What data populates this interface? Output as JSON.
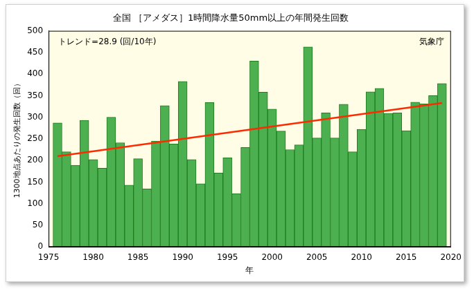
{
  "chart_data": {
    "type": "bar",
    "title": "全国 ［アメダス］1時間降水量50mm以上の年間発生回数",
    "x_label": "年",
    "y_label": "1300地点あたりの発生回数（回）",
    "annotations": [
      "トレンド=28.9 (回/10年)",
      "気象庁"
    ],
    "x": [
      1976,
      1977,
      1978,
      1979,
      1980,
      1981,
      1982,
      1983,
      1984,
      1985,
      1986,
      1987,
      1988,
      1989,
      1990,
      1991,
      1992,
      1993,
      1994,
      1995,
      1996,
      1997,
      1998,
      1999,
      2000,
      2001,
      2002,
      2003,
      2004,
      2005,
      2006,
      2007,
      2008,
      2009,
      2010,
      2011,
      2012,
      2013,
      2014,
      2015,
      2016,
      2017,
      2018,
      2019
    ],
    "series": [
      {
        "type": "bar",
        "color": "#4caf50",
        "values": [
          287,
          220,
          189,
          293,
          202,
          182,
          300,
          241,
          143,
          204,
          134,
          245,
          327,
          238,
          383,
          202,
          146,
          334,
          171,
          206,
          123,
          230,
          430,
          358,
          319,
          268,
          225,
          236,
          463,
          252,
          310,
          252,
          330,
          220,
          272,
          359,
          367,
          309,
          310,
          269,
          335,
          331,
          350,
          378
        ]
      },
      {
        "type": "line",
        "color": "#ff2a00",
        "values": [
          210,
          null,
          null,
          null,
          null,
          null,
          null,
          null,
          null,
          null,
          null,
          null,
          null,
          null,
          null,
          null,
          null,
          null,
          null,
          null,
          null,
          null,
          null,
          null,
          null,
          null,
          null,
          null,
          null,
          null,
          null,
          null,
          null,
          null,
          null,
          null,
          null,
          null,
          null,
          null,
          null,
          null,
          null,
          333
        ]
      }
    ],
    "xlim": [
      1975,
      2020
    ],
    "xticks": [
      1975,
      1980,
      1985,
      1990,
      1995,
      2000,
      2005,
      2010,
      2015,
      2020
    ],
    "ylim": [
      0,
      500
    ],
    "yticks": [
      0,
      50,
      100,
      150,
      200,
      250,
      300,
      350,
      400,
      450,
      500
    ],
    "grid": false
  }
}
